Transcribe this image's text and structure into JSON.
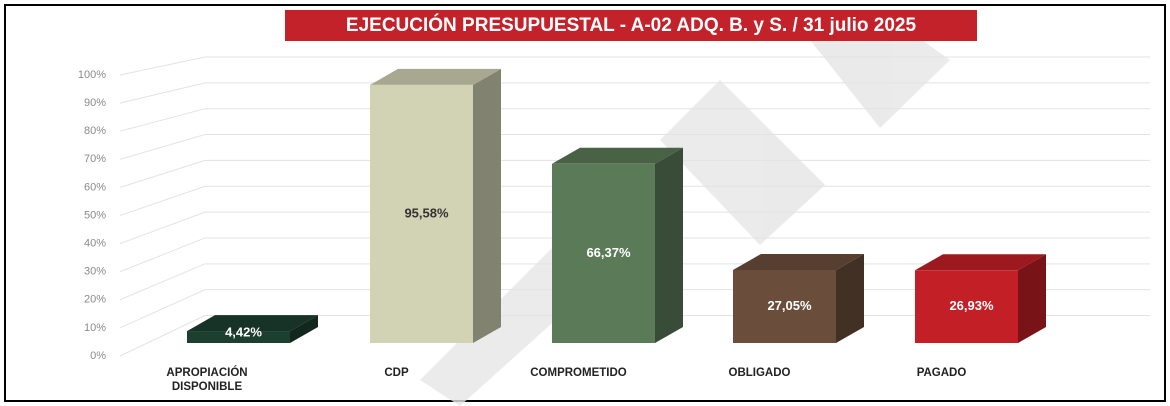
{
  "chart_data": {
    "type": "bar3d",
    "title": "EJECUCIÓN PRESUPUESTAL - A-02 ADQ. B. y S. / 31 julio 2025",
    "categories": [
      "APROPIACIÓN DISPONIBLE",
      "CDP",
      "COMPROMETIDO",
      "OBLIGADO",
      "PAGADO"
    ],
    "values": [
      4.42,
      95.58,
      66.37,
      27.05,
      26.93
    ],
    "value_labels": [
      "4,42%",
      "95,58%",
      "66,37%",
      "27,05%",
      "26,93%"
    ],
    "colors": [
      "#1d3f30",
      "#d2d2b4",
      "#5b7a58",
      "#6b4d3c",
      "#c21f27"
    ],
    "ylim": [
      0,
      100
    ],
    "yticks": [
      {
        "value": 0,
        "label": "0%"
      },
      {
        "value": 10,
        "label": "10%"
      },
      {
        "value": 20,
        "label": "20%"
      },
      {
        "value": 30,
        "label": "30%"
      },
      {
        "value": 40,
        "label": "40%"
      },
      {
        "value": 50,
        "label": "50%"
      },
      {
        "value": 60,
        "label": "60%"
      },
      {
        "value": 70,
        "label": "70%"
      },
      {
        "value": 80,
        "label": "80%"
      },
      {
        "value": 90,
        "label": "90%"
      },
      {
        "value": 100,
        "label": "100%"
      }
    ],
    "grid": true
  }
}
